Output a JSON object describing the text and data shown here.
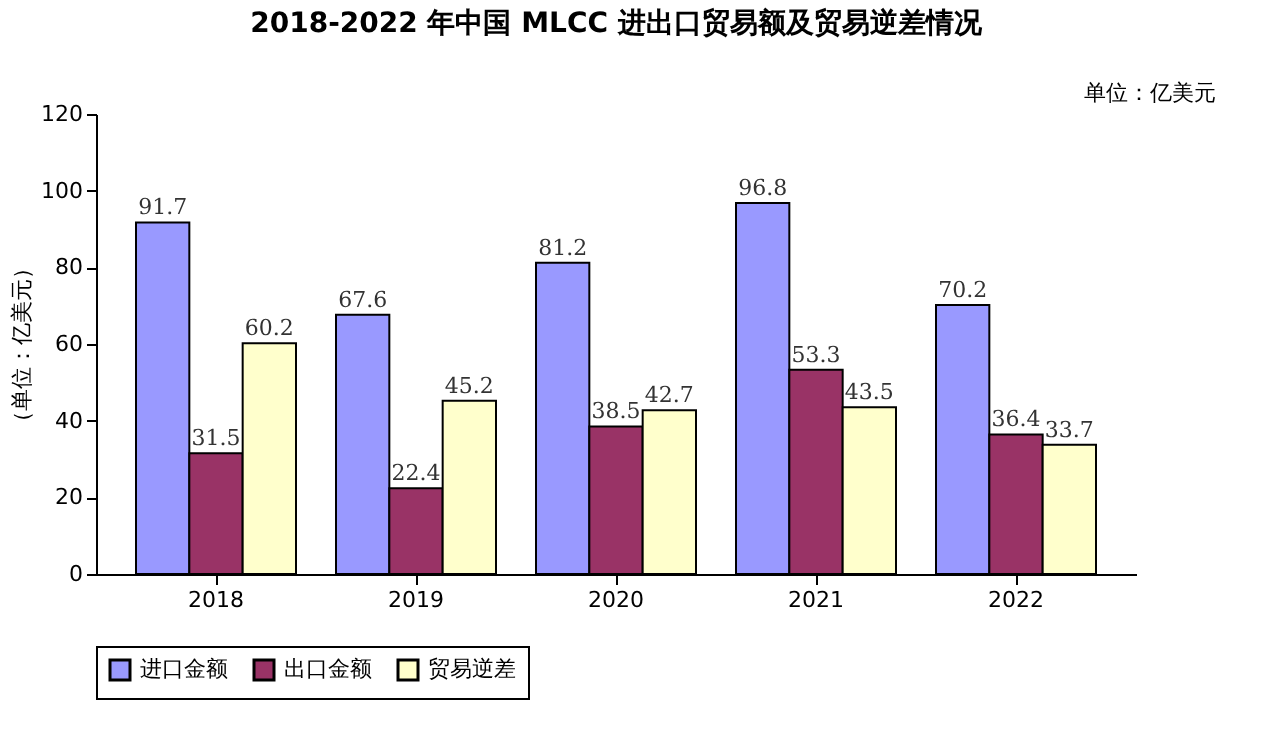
{
  "chart_data": {
    "type": "bar",
    "title": "2018-2022 年中国 MLCC 进出口贸易额及贸易逆差情况",
    "annotations": [
      "单位：亿美元"
    ],
    "ylabel": "（单位：亿美元）",
    "categories": [
      "2018",
      "2019",
      "2020",
      "2021",
      "2022"
    ],
    "series": [
      {
        "name": "进口金额",
        "color": "#9999ff",
        "values": [
          91.7,
          67.6,
          81.2,
          96.8,
          70.2
        ]
      },
      {
        "name": "出口金额",
        "color": "#993366",
        "values": [
          31.5,
          22.4,
          38.5,
          53.3,
          36.4
        ]
      },
      {
        "name": "贸易逆差",
        "color": "#ffffcc",
        "values": [
          60.2,
          45.2,
          42.7,
          43.5,
          33.7
        ]
      }
    ],
    "ylim": [
      0,
      120
    ],
    "yticks": [
      0,
      20,
      40,
      60,
      80,
      100,
      120
    ],
    "data_labels": true,
    "legend": "bottom",
    "grid": false
  }
}
